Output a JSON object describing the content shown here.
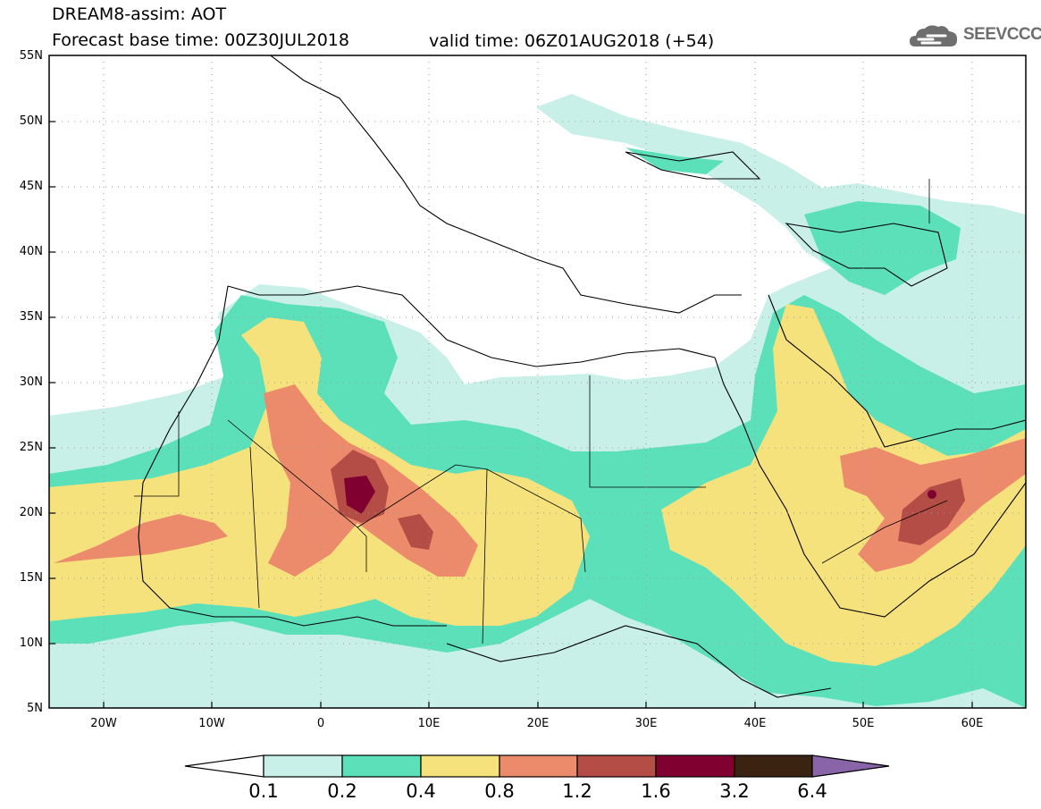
{
  "header": {
    "line1": "DREAM8-assim: AOT",
    "base_time": "Forecast base time: 00Z30JUL2018",
    "valid_time": "valid time: 06Z01AUG2018 (+54)",
    "logo_text": "SEEVCCC"
  },
  "map": {
    "lat_labels": [
      "55N",
      "50N",
      "45N",
      "40N",
      "35N",
      "30N",
      "25N",
      "20N",
      "15N",
      "10N",
      "5N"
    ],
    "lon_labels": [
      "20W",
      "10W",
      "0",
      "10E",
      "20E",
      "30E",
      "40E",
      "50E",
      "60E"
    ],
    "lat_range": [
      5,
      55
    ],
    "lon_range": [
      -25,
      65
    ]
  },
  "colorbar": {
    "labels": [
      "0.1",
      "0.2",
      "0.4",
      "0.8",
      "1.2",
      "1.6",
      "3.2",
      "6.4"
    ],
    "colors": [
      "#c8f0e8",
      "#5ce0b9",
      "#f6e27c",
      "#ec8b6c",
      "#b34d45",
      "#800030",
      "#3b2312",
      "#8a64a8"
    ]
  }
}
